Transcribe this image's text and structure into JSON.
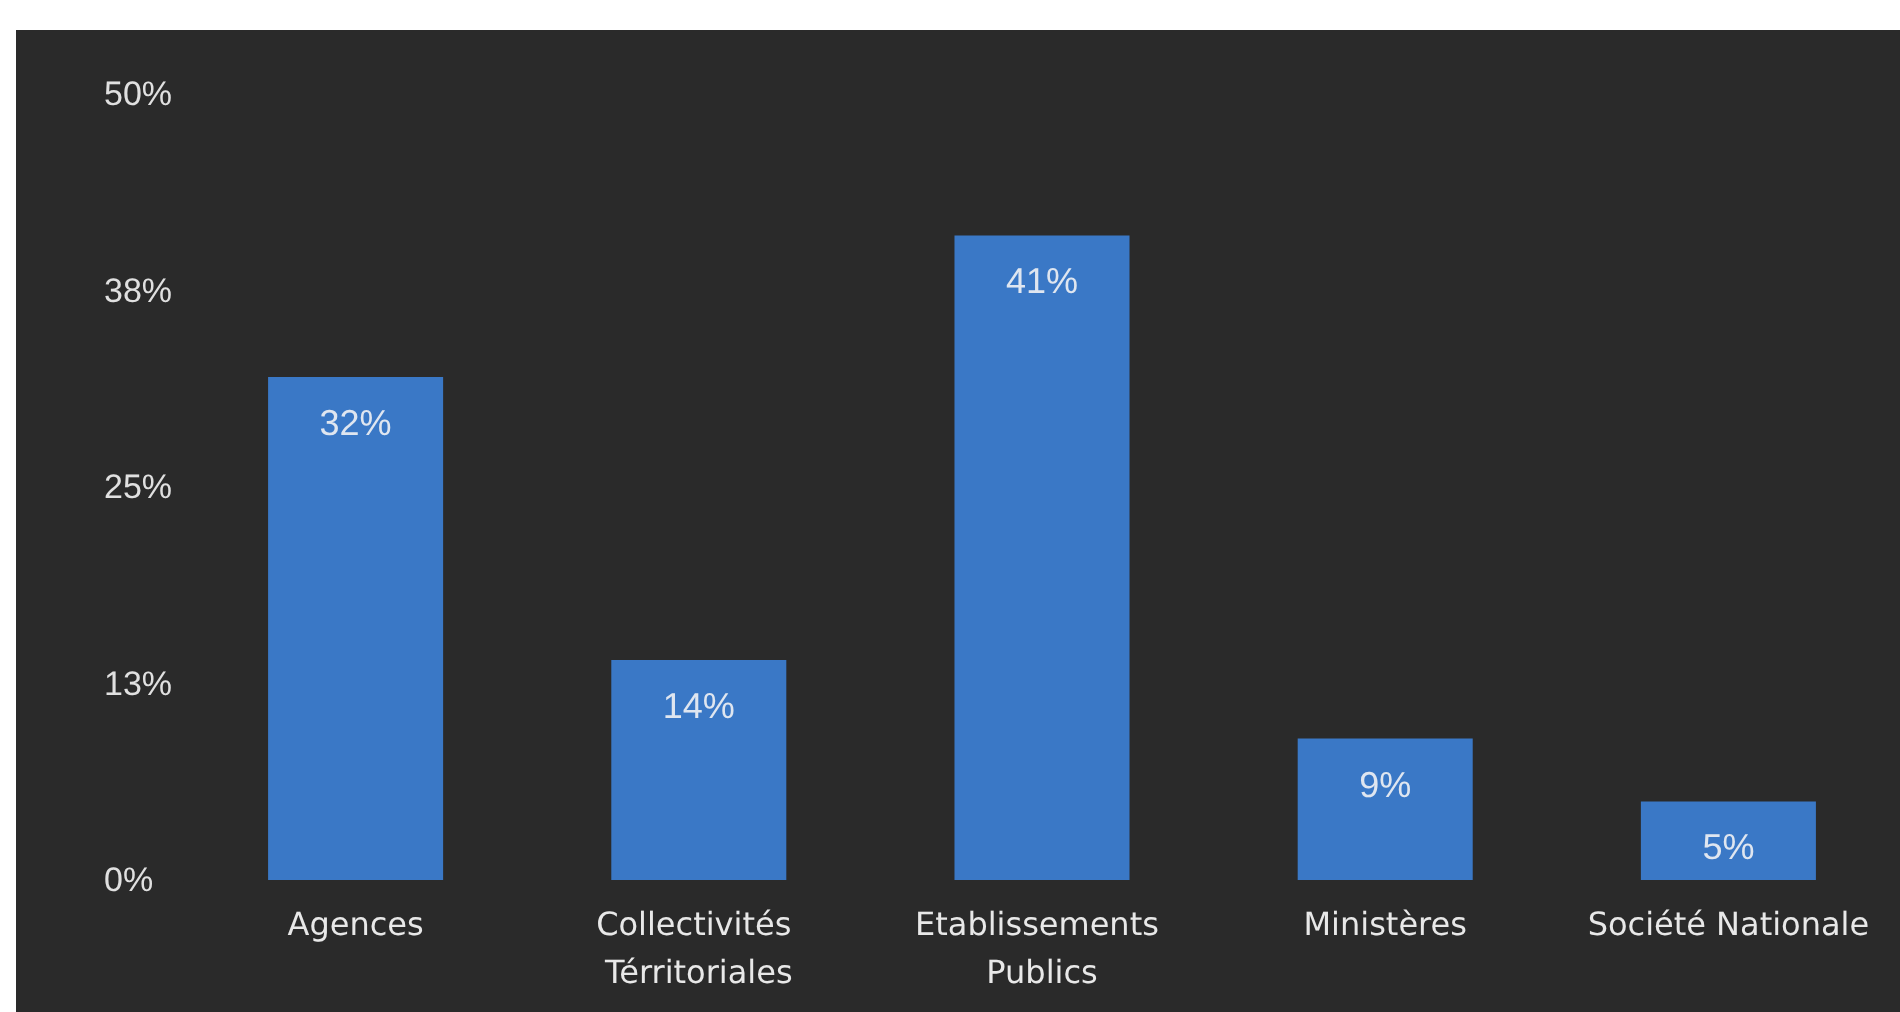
{
  "chart_data": {
    "type": "bar",
    "categories": [
      "Agences",
      "Collectivités Térritoriales",
      "Etablissements Publics",
      "Ministères",
      "Société Nationale"
    ],
    "values": [
      32,
      14,
      41,
      9,
      5
    ],
    "color": "#3a78c6",
    "value_labels": [
      "32%",
      "14%",
      "41%",
      "9%",
      "5%"
    ],
    "ylim": [
      0,
      50
    ],
    "yticks": [
      {
        "value": 0,
        "label": "0%"
      },
      {
        "value": 12.5,
        "label": "13%"
      },
      {
        "value": 25,
        "label": "25%"
      },
      {
        "value": 37.5,
        "label": "38%"
      },
      {
        "value": 50,
        "label": "50%"
      }
    ],
    "grid": false
  }
}
